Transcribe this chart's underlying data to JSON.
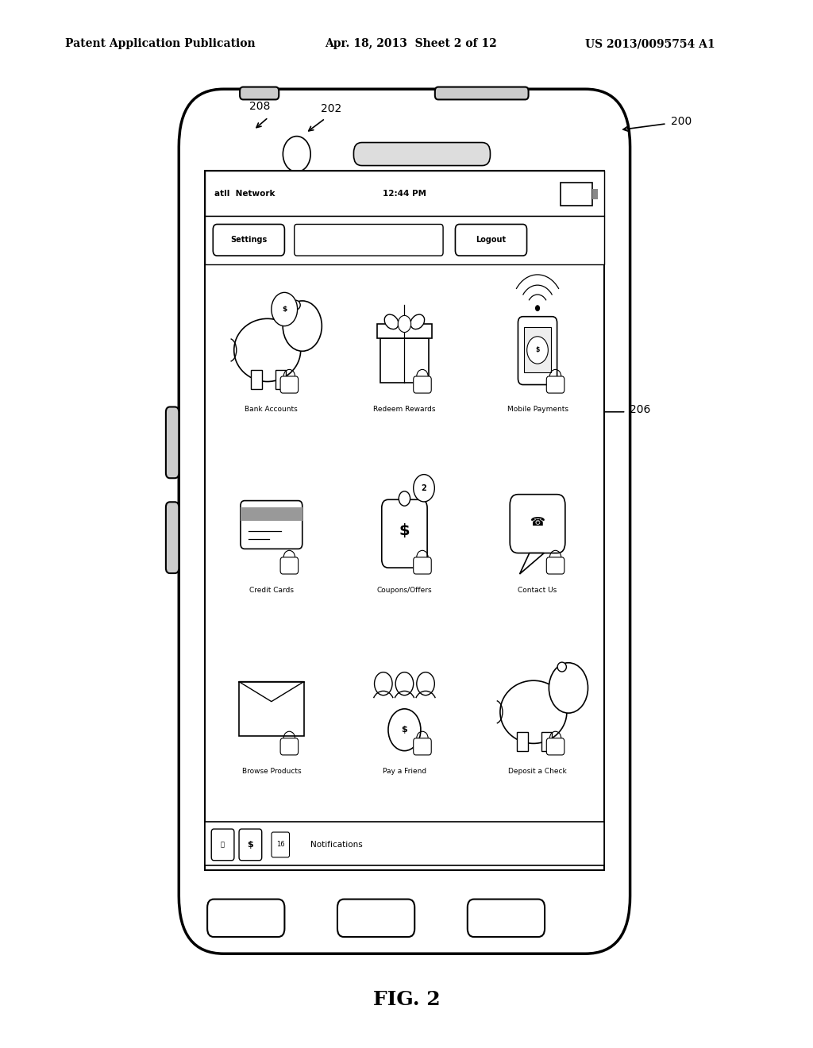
{
  "bg_color": "#ffffff",
  "header_text": "Patent Application Publication",
  "header_date": "Apr. 18, 2013  Sheet 2 of 12",
  "header_patent": "US 2013/0095754 A1",
  "fig_label": "FIG. 2",
  "icon_labels": [
    "Bank Accounts",
    "Redeem Rewards",
    "Mobile Payments",
    "Credit Cards",
    "Coupons/Offers",
    "Contact Us",
    "Browse Products",
    "Pay a Friend",
    "Deposit a Check"
  ]
}
